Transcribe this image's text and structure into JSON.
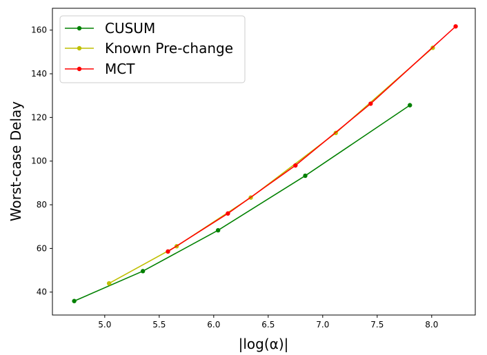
{
  "chart_data": {
    "type": "line",
    "title": "",
    "xlabel": "|log(α)|",
    "ylabel": "Worst-case Delay",
    "xlim": [
      4.52,
      8.4
    ],
    "ylim": [
      29.5,
      170
    ],
    "xticks": [
      5.0,
      5.5,
      6.0,
      6.5,
      7.0,
      7.5,
      8.0
    ],
    "xtick_labels": [
      "5.0",
      "5.5",
      "6.0",
      "6.5",
      "7.0",
      "7.5",
      "8.0"
    ],
    "yticks": [
      40,
      60,
      80,
      100,
      120,
      140,
      160
    ],
    "ytick_labels": [
      "40",
      "60",
      "80",
      "100",
      "120",
      "140",
      "160"
    ],
    "grid": false,
    "legend_position": "top-left",
    "series": [
      {
        "name": "CUSUM",
        "color": "#008000",
        "x": [
          4.72,
          5.35,
          6.04,
          6.84,
          7.8
        ],
        "y": [
          35.9,
          49.6,
          68.3,
          93.3,
          125.6
        ]
      },
      {
        "name": "Known Pre-change",
        "color": "#bfbf00",
        "x": [
          5.04,
          5.66,
          6.34,
          7.12,
          8.01
        ],
        "y": [
          44.0,
          61.0,
          83.3,
          112.9,
          151.9
        ]
      },
      {
        "name": "MCT",
        "color": "#ff0000",
        "x": [
          5.58,
          6.13,
          6.75,
          7.44,
          8.22
        ],
        "y": [
          58.6,
          76.0,
          98.0,
          126.3,
          161.7
        ]
      }
    ]
  }
}
